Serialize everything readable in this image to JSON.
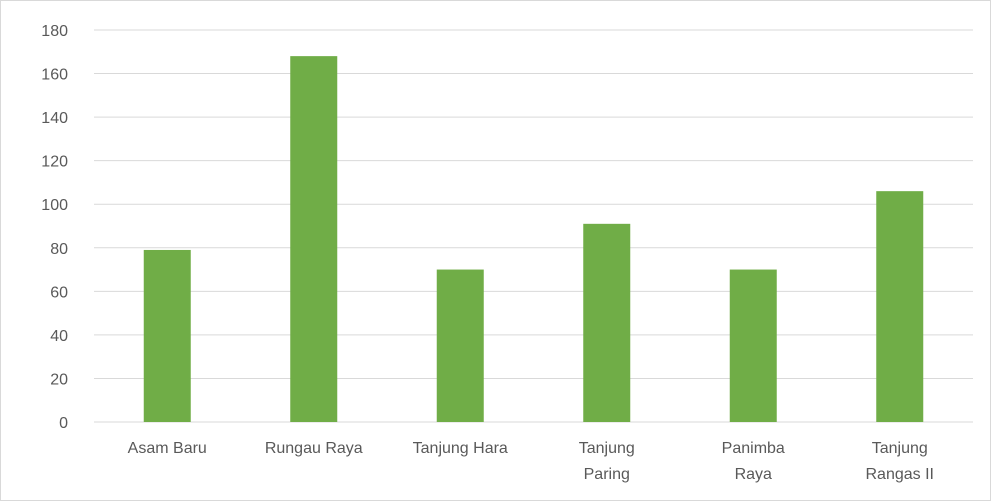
{
  "chart_data": {
    "type": "bar",
    "categories": [
      [
        "Asam Baru"
      ],
      [
        "Rungau Raya"
      ],
      [
        "Tanjung Hara"
      ],
      [
        "Tanjung",
        "Paring"
      ],
      [
        "Panimba",
        "Raya"
      ],
      [
        "Tanjung",
        "Rangas II"
      ]
    ],
    "values": [
      79,
      168,
      70,
      91,
      70,
      106
    ],
    "title": "",
    "xlabel": "",
    "ylabel": "",
    "ylim": [
      0,
      180
    ],
    "yticks": [
      "0",
      "20",
      "40",
      "60",
      "80",
      "100",
      "120",
      "140",
      "160",
      "180"
    ],
    "grid": true,
    "legend": "none",
    "bar_color": "#70ad47",
    "grid_color": "#d9d9d9",
    "label_color": "#595959"
  }
}
